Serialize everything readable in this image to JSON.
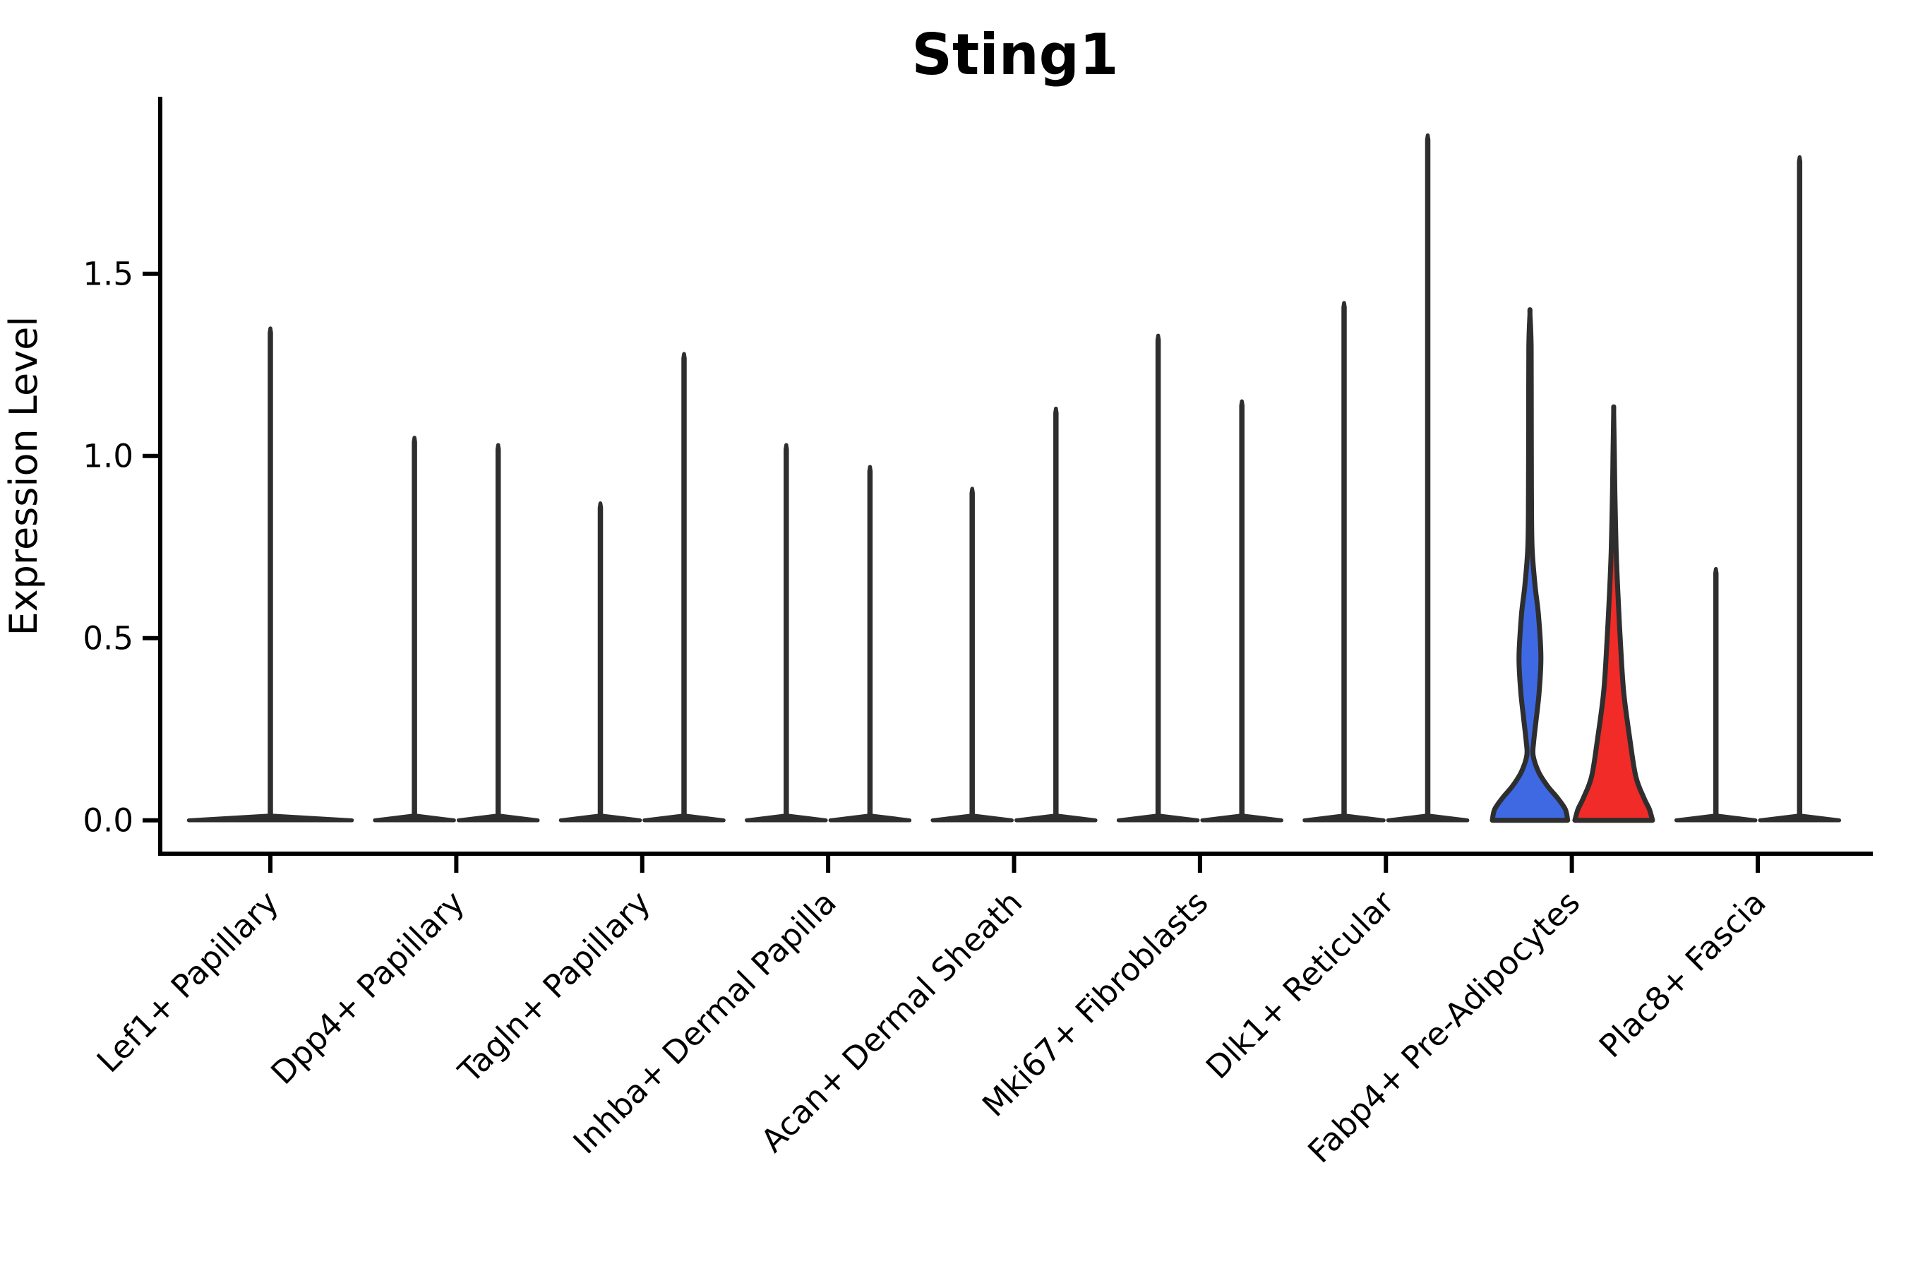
{
  "title": "Sting1",
  "axes": {
    "ylabel": "Expression Level",
    "ytick_labels": [
      "0.0",
      "0.5",
      "1.0",
      "1.5"
    ]
  },
  "colors": {
    "group1_blue": "#3E69E3",
    "group2_red": "#F02B28",
    "violin_outline": "#2E2E2E",
    "axis": "#000000"
  },
  "chart_data": {
    "type": "violin",
    "title": "Sting1",
    "ylabel": "Expression Level",
    "xlabel": "",
    "ylim": [
      0,
      1.98
    ],
    "yticks": [
      0.0,
      0.5,
      1.0,
      1.5
    ],
    "grid": false,
    "legend": null,
    "description": "Split violin plot (two groups per category, side by side). Most violins are collapsed at expression 0 with a thin spike up to the maximum value; only Fabp4+ Pre-Adipocytes shows substantial non-zero expression (blue = group 1, red = group 2).",
    "categories": [
      "Lef1+ Papillary",
      "Dpp4+ Papillary",
      "Tagln+ Papillary",
      "Inhba+ Dermal Papilla",
      "Acan+ Dermal Sheath",
      "Mki67+ Fibroblasts",
      "Dlk1+ Reticular",
      "Fabp4+ Pre-Adipocytes",
      "Plac8+ Fascia"
    ],
    "violins": [
      {
        "category": "Lef1+ Papillary",
        "parts": [
          {
            "side": "full",
            "peak": 1.35
          }
        ]
      },
      {
        "category": "Dpp4+ Papillary",
        "parts": [
          {
            "side": "left",
            "peak": 1.05
          },
          {
            "side": "right",
            "peak": 1.03
          }
        ]
      },
      {
        "category": "Tagln+ Papillary",
        "parts": [
          {
            "side": "left",
            "peak": 0.87
          },
          {
            "side": "right",
            "peak": 1.28
          }
        ]
      },
      {
        "category": "Inhba+ Dermal Papilla",
        "parts": [
          {
            "side": "left",
            "peak": 1.03
          },
          {
            "side": "right",
            "peak": 0.97
          }
        ]
      },
      {
        "category": "Acan+ Dermal Sheath",
        "parts": [
          {
            "side": "left",
            "peak": 0.91
          },
          {
            "side": "right",
            "peak": 1.13
          }
        ]
      },
      {
        "category": "Mki67+ Fibroblasts",
        "parts": [
          {
            "side": "left",
            "peak": 1.33
          },
          {
            "side": "right",
            "peak": 1.15
          }
        ]
      },
      {
        "category": "Dlk1+ Reticular",
        "parts": [
          {
            "side": "left",
            "peak": 1.42
          },
          {
            "side": "right",
            "peak": 1.88
          }
        ]
      },
      {
        "category": "Fabp4+ Pre-Adipocytes",
        "parts": [
          {
            "side": "left",
            "peak": 1.39,
            "fill": "#3E69E3",
            "profile": [
              [
                0,
                0.97
              ],
              [
                0.03,
                0.91
              ],
              [
                0.061,
                0.71
              ],
              [
                0.094,
                0.45
              ],
              [
                0.133,
                0.22
              ],
              [
                0.178,
                0.082
              ],
              [
                0.216,
                0.096
              ],
              [
                0.275,
                0.158
              ],
              [
                0.352,
                0.236
              ],
              [
                0.449,
                0.282
              ],
              [
                0.565,
                0.218
              ],
              [
                0.643,
                0.133
              ],
              [
                0.75,
                0.055
              ],
              [
                0.9,
                0.038
              ],
              [
                1.1,
                0.034
              ],
              [
                1.3,
                0.03
              ],
              [
                1.39,
                0
              ]
            ]
          },
          {
            "side": "right",
            "peak": 1.12,
            "fill": "#F02B28",
            "profile": [
              [
                0,
                1.0
              ],
              [
                0.03,
                0.92
              ],
              [
                0.061,
                0.78
              ],
              [
                0.12,
                0.57
              ],
              [
                0.22,
                0.42
              ],
              [
                0.35,
                0.26
              ],
              [
                0.48,
                0.178
              ],
              [
                0.62,
                0.11
              ],
              [
                0.74,
                0.064
              ],
              [
                0.9,
                0.031
              ],
              [
                1.0,
                0.018
              ],
              [
                1.12,
                0
              ]
            ]
          }
        ]
      },
      {
        "category": "Plac8+ Fascia",
        "parts": [
          {
            "side": "left",
            "peak": 0.69
          },
          {
            "side": "right",
            "peak": 1.82
          }
        ]
      }
    ]
  }
}
